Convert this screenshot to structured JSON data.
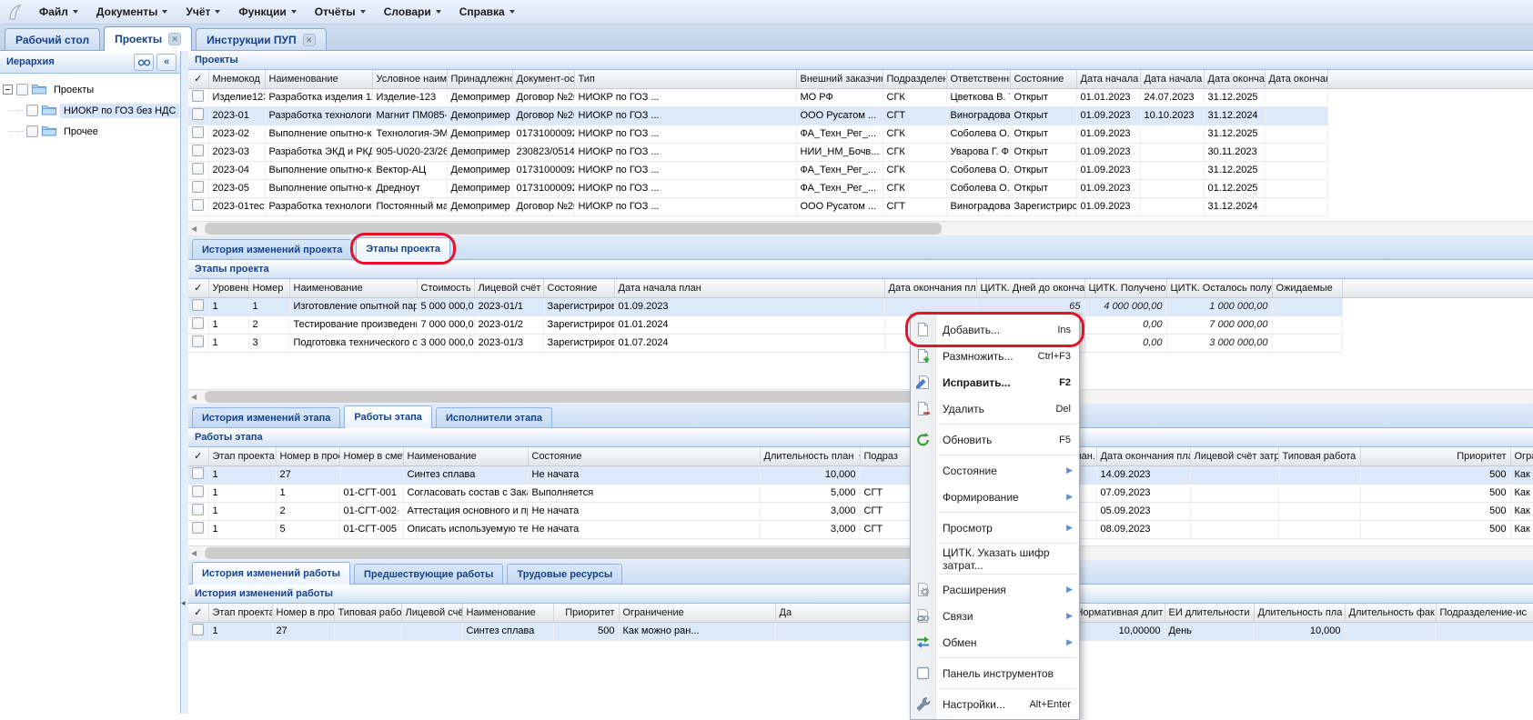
{
  "colors": {
    "accent_text": "#15428b",
    "annotation": "#e8112d",
    "selection_bg": "#dce9f9"
  },
  "menubar": {
    "items": [
      "Файл",
      "Документы",
      "Учёт",
      "Функции",
      "Отчёты",
      "Словари",
      "Справка"
    ]
  },
  "window_tabs": [
    {
      "label": "Рабочий стол",
      "closable": false,
      "active": false
    },
    {
      "label": "Проекты",
      "closable": true,
      "active": true
    },
    {
      "label": "Инструкции ПУП",
      "closable": true,
      "active": false
    }
  ],
  "sidebar": {
    "title": "Иерархия",
    "nodes": [
      {
        "label": "Проекты",
        "level": 0,
        "expanded": true,
        "selected": false
      },
      {
        "label": "НИОКР по ГОЗ без НДС",
        "level": 1,
        "selected": true
      },
      {
        "label": "Прочее",
        "level": 1,
        "selected": false
      }
    ]
  },
  "projects": {
    "title": "Проекты",
    "columns": [
      "✓",
      "Мнемокод",
      "Наименование",
      "Условное наименова",
      "Принадлежность",
      "Документ-основан",
      "Тип",
      "Внешний заказчик",
      "Подразделение-от",
      "Ответственный",
      "Состояние",
      "Дата начала план.",
      "Дата начала факт.",
      "Дата окончания пл",
      "Дата окончания ф"
    ],
    "selected_row": 1,
    "rows": [
      [
        false,
        "Изделие123",
        "Разработка изделия 123",
        "Изделие-123",
        "Демопример",
        "Договор №202...",
        "НИОКР по ГОЗ ...",
        "МО РФ",
        "СГК",
        "Цветкова В. Т.",
        "Открыт",
        "01.01.2023",
        "24.07.2023",
        "31.12.2025",
        ""
      ],
      [
        false,
        "2023-01",
        "Разработка технологии и...",
        "Магнит ПМ085-01",
        "Демопример",
        "Договор №202...",
        "НИОКР по ГОЗ ...",
        "ООО Русатом ...",
        "СГТ",
        "Виноградова А...",
        "Открыт",
        "01.09.2023",
        "10.10.2023",
        "31.12.2024",
        ""
      ],
      [
        false,
        "2023-02",
        "Выполнение опытно-конс...",
        "Технология-ЭМС",
        "Демопример",
        "017310000922...",
        "НИОКР по ГОЗ ...",
        "ФА_Техн_Рег_...",
        "СГК",
        "Соболева О. А.",
        "Открыт",
        "01.09.2023",
        "",
        "31.12.2025",
        ""
      ],
      [
        false,
        "2023-03",
        "Разработка ЭКД и РКД н...",
        "905-U020-23/269",
        "Демопример",
        "230823/0514/136",
        "НИОКР по ГОЗ ...",
        "НИИ_НМ_Бочв...",
        "СГК",
        "Уварова Г. Ф.",
        "Открыт",
        "01.09.2023",
        "",
        "30.11.2023",
        ""
      ],
      [
        false,
        "2023-04",
        "Выполнение опытно-конс...",
        "Вектор-АЦ",
        "Демопример",
        "017310000922...",
        "НИОКР по ГОЗ ...",
        "ФА_Техн_Рег_...",
        "СГК",
        "Соболева О. А.",
        "Открыт",
        "01.09.2023",
        "",
        "31.12.2025",
        ""
      ],
      [
        false,
        "2023-05",
        "Выполнение опытно-конс...",
        "Дредноут",
        "Демопример",
        "017310000922...",
        "НИОКР по ГОЗ ...",
        "ФА_Техн_Рег_...",
        "СГК",
        "Соболева О. А.",
        "Открыт",
        "01.09.2023",
        "",
        "01.12.2025",
        ""
      ],
      [
        false,
        "2023-01тест",
        "Разработка технологии и...",
        "Постоянный маг...",
        "Демопример",
        "Договор №202...",
        "НИОКР по ГОЗ ...",
        "ООО Русатом ...",
        "СГТ",
        "Виноградова А...",
        "Зарегистрирован",
        "01.09.2023",
        "",
        "31.12.2024",
        ""
      ]
    ]
  },
  "section_tabs": {
    "project": [
      {
        "label": "История изменений проекта",
        "active": false
      },
      {
        "label": "Этапы проекта",
        "active": true,
        "annotated": true
      }
    ],
    "stage": [
      {
        "label": "История изменений этапа",
        "active": false
      },
      {
        "label": "Работы этапа",
        "active": true
      },
      {
        "label": "Исполнители этапа",
        "active": false
      }
    ],
    "work": [
      {
        "label": "История изменений работы",
        "active": true
      },
      {
        "label": "Предшествующие работы",
        "active": false
      },
      {
        "label": "Трудовые ресурсы",
        "active": false
      }
    ]
  },
  "stages": {
    "title": "Этапы проекта",
    "columns": [
      "✓",
      "Уровень",
      "Номер",
      "Наименование",
      "Стоимость этапа",
      "Лицевой счёт затрат.",
      "Состояние",
      "Дата начала план",
      "Дата окончания план",
      "ЦИТК. Дней до окончания",
      "ЦИТК. Получено д/с",
      "ЦИТК. Осталось получить д/с",
      "Ожидаемые"
    ],
    "selected_row": 0,
    "rows": [
      [
        false,
        "1",
        "1",
        "Изготовление опытной партии ПМ0...",
        "5 000 000,00",
        "2023-01/1",
        "Зарегистрирован",
        "01.09.2023",
        "",
        "65",
        "4 000 000,00",
        "1 000 000,00",
        ""
      ],
      [
        false,
        "1",
        "2",
        "Тестирование произведенной опыт...",
        "7 000 000,00",
        "2023-01/2",
        "Зарегистрирован",
        "01.01.2024",
        "",
        "247",
        "0,00",
        "7 000 000,00",
        ""
      ],
      [
        false,
        "1",
        "3",
        "Подготовка технического отчета с ...",
        "3 000 000,00",
        "2023-01/3",
        "Зарегистрирован",
        "01.07.2024",
        "",
        "431",
        "0,00",
        "3 000 000,00",
        ""
      ]
    ]
  },
  "works": {
    "title": "Работы этапа",
    "columns": [
      "✓",
      "Этап проекта",
      "Номер в проекте",
      "Номер в смете",
      "Наименование",
      "Состояние",
      "Длительность план",
      "Подраз",
      "Дата начала план.",
      "Дата окончания план",
      "Лицевой счёт затр",
      "Типовая работа",
      "Приоритет",
      "Ограничение"
    ],
    "selected_row": 0,
    "rows": [
      [
        false,
        "1",
        "27",
        "",
        "Синтез сплава",
        "Не начата",
        "10,000",
        "",
        "",
        "14.09.2023",
        "",
        "",
        "500",
        "Как можно ран..."
      ],
      [
        false,
        "1",
        "1",
        "01-СГТ-001",
        "Согласовать состав с Заказчиком",
        "Выполняется",
        "5,000",
        "СГТ",
        "",
        "07.09.2023",
        "",
        "",
        "500",
        "Как можно ран..."
      ],
      [
        false,
        "1",
        "2",
        "01-СГТ-002",
        "Аттестация основного и примесног...",
        "Не начата",
        "3,000",
        "СГТ",
        "",
        "05.09.2023",
        "",
        "",
        "500",
        "Как можно ран..."
      ],
      [
        false,
        "1",
        "5",
        "01-СГТ-005",
        "Описать используемую технологию",
        "Не начата",
        "3,000",
        "СГТ",
        "",
        "08.09.2023",
        "",
        "",
        "500",
        "Как можно ран..."
      ]
    ]
  },
  "history": {
    "title": "История изменений работы",
    "columns": [
      "✓",
      "Этап проекта",
      "Номер в проекте",
      "Типовая работа",
      "Лицевой счёт затр",
      "Наименование",
      "Приоритет",
      "Ограничение",
      "Да",
      "Нормативная длит",
      "ЕИ длительности",
      "Длительность пла",
      "Длительность фак",
      "Подразделение-ис"
    ],
    "selected_row": 0,
    "rows": [
      [
        false,
        "1",
        "27",
        "",
        "",
        "Синтез сплава",
        "500",
        "Как можно ран...",
        "",
        "10,00000",
        "День",
        "10,000",
        "",
        ""
      ]
    ]
  },
  "context_menu": {
    "items": [
      {
        "label": "Добавить...",
        "shortcut": "Ins",
        "icon": "add-document-icon",
        "annotated": true
      },
      {
        "label": "Размножить...",
        "shortcut": "Ctrl+F3",
        "icon": "duplicate-document-icon"
      },
      {
        "label": "Исправить...",
        "shortcut": "F2",
        "icon": "edit-document-icon",
        "bold": true
      },
      {
        "label": "Удалить",
        "shortcut": "Del",
        "icon": "delete-document-icon"
      },
      {
        "label": "Обновить",
        "shortcut": "F5",
        "icon": "refresh-icon"
      },
      {
        "label": "Состояние",
        "submenu": true
      },
      {
        "label": "Формирование",
        "submenu": true
      },
      {
        "label": "Просмотр",
        "submenu": true
      },
      {
        "label": "ЦИТК. Указать шифр затрат..."
      },
      {
        "label": "Расширения",
        "submenu": true,
        "icon": "extensions-icon"
      },
      {
        "label": "Связи",
        "submenu": true,
        "icon": "links-icon"
      },
      {
        "label": "Обмен",
        "submenu": true,
        "icon": "exchange-icon"
      },
      {
        "label": "Панель инструментов",
        "icon": "checkbox-icon"
      },
      {
        "label": "Настройки...",
        "shortcut": "Alt+Enter",
        "icon": "settings-icon"
      }
    ]
  },
  "annotations": {
    "color": "#e8112d",
    "targets": [
      "Этапы проекта tab",
      "Добавить... menu item"
    ]
  }
}
